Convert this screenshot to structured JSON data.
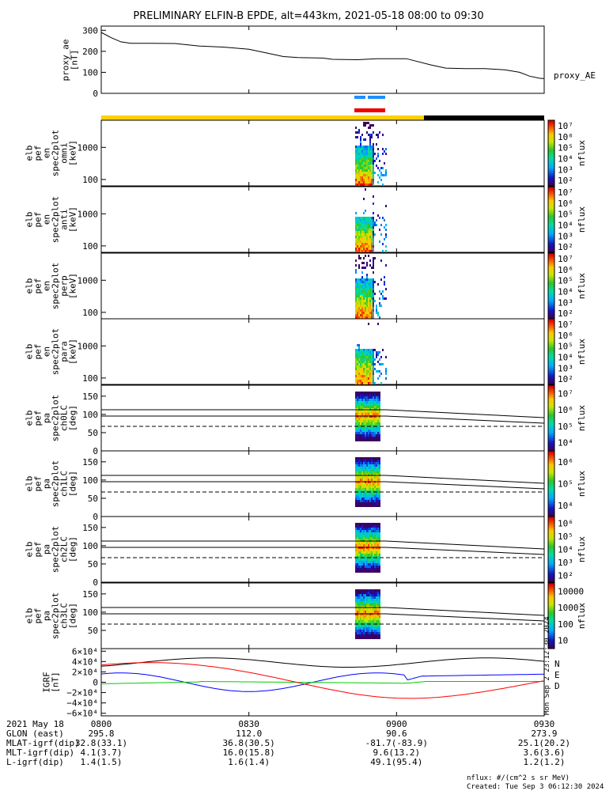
{
  "title": "PRELIMINARY ELFIN-B EPDE, alt=443km, 2021-05-18 08:00 to 09:30",
  "chart_data": {
    "type": "spectrogram",
    "x_range_minutes": [
      0,
      90
    ],
    "x_tick_labels": [
      "0800",
      "0830",
      "0900",
      "0930"
    ],
    "x_tick_minutes": [
      0,
      30,
      60,
      90
    ],
    "top_panel": {
      "ylabel": "proxy_ae [nT]",
      "ylim": [
        0,
        320
      ],
      "yticks": [
        0,
        100,
        200,
        300
      ],
      "series_label": "proxy_AE",
      "points": [
        [
          0,
          290
        ],
        [
          2,
          265
        ],
        [
          4,
          245
        ],
        [
          6,
          238
        ],
        [
          10,
          238
        ],
        [
          15,
          237
        ],
        [
          20,
          225
        ],
        [
          25,
          220
        ],
        [
          30,
          210
        ],
        [
          34,
          190
        ],
        [
          37,
          175
        ],
        [
          40,
          170
        ],
        [
          45,
          168
        ],
        [
          47,
          162
        ],
        [
          52,
          160
        ],
        [
          56,
          165
        ],
        [
          62,
          165
        ],
        [
          67,
          135
        ],
        [
          70,
          120
        ],
        [
          74,
          118
        ],
        [
          78,
          118
        ],
        [
          82,
          112
        ],
        [
          85,
          100
        ],
        [
          87,
          82
        ],
        [
          89,
          72
        ],
        [
          90,
          70
        ]
      ]
    },
    "spectrogram_panels": [
      {
        "ylabel": [
          "elb",
          "pef",
          "en",
          "spec2plot",
          "omni",
          "[keV]"
        ],
        "yticks": [
          "100",
          "1000"
        ],
        "cbar_label": "nflux",
        "cbar_ticks": [
          "10²",
          "10³",
          "10⁴",
          "10⁵",
          "10⁶",
          "10⁷"
        ]
      },
      {
        "ylabel": [
          "elb",
          "pef",
          "en",
          "spec2plot",
          "anti",
          "[keV]"
        ],
        "yticks": [
          "100",
          "1000"
        ],
        "cbar_label": "nflux",
        "cbar_ticks": [
          "10²",
          "10³",
          "10⁴",
          "10⁵",
          "10⁶",
          "10⁷"
        ]
      },
      {
        "ylabel": [
          "elb",
          "pef",
          "en",
          "spec2plot",
          "perp",
          "[keV]"
        ],
        "yticks": [
          "100",
          "1000"
        ],
        "cbar_label": "nflux",
        "cbar_ticks": [
          "10²",
          "10³",
          "10⁴",
          "10⁵",
          "10⁶",
          "10⁷"
        ]
      },
      {
        "ylabel": [
          "elb",
          "pef",
          "en",
          "spec2plot",
          "para",
          "[keV]"
        ],
        "yticks": [
          "100",
          "1000"
        ],
        "cbar_label": "nflux",
        "cbar_ticks": [
          "10²",
          "10³",
          "10⁴",
          "10⁵",
          "10⁶",
          "10⁷"
        ]
      },
      {
        "ylabel": [
          "elb",
          "pef",
          "pa",
          "spec2plot",
          "ch0LC",
          "[deg]"
        ],
        "yticks": [
          "0",
          "50",
          "100",
          "150"
        ],
        "cbar_label": "nflux",
        "cbar_ticks": [
          "10⁴",
          "10⁵",
          "10⁶",
          "10⁷"
        ]
      },
      {
        "ylabel": [
          "elb",
          "pef",
          "pa",
          "spec2plot",
          "ch1LC",
          "[deg]"
        ],
        "yticks": [
          "0",
          "50",
          "100",
          "150"
        ],
        "cbar_label": "nflux",
        "cbar_ticks": [
          "10⁴",
          "10⁵",
          "10⁶"
        ]
      },
      {
        "ylabel": [
          "elb",
          "pef",
          "pa",
          "spec2plot",
          "ch2LC",
          "[deg]"
        ],
        "yticks": [
          "0",
          "50",
          "100",
          "150"
        ],
        "cbar_label": "nflux",
        "cbar_ticks": [
          "10²",
          "10³",
          "10⁴",
          "10⁵",
          "10⁶"
        ]
      },
      {
        "ylabel": [
          "elb",
          "pef",
          "pa",
          "spec2plot",
          "ch3LC",
          "[deg]"
        ],
        "yticks": [
          "50",
          "100",
          "150"
        ],
        "cbar_label": "nflux",
        "cbar_ticks": [
          "10",
          "100",
          "1000",
          "10000"
        ]
      }
    ],
    "igrf_panel": {
      "ylabel": "IGRF [nT]",
      "yticks": [
        "−6×10⁴",
        "−4×10⁴",
        "−2×10⁴",
        "0",
        "2×10⁴",
        "4×10⁴",
        "6×10⁴"
      ],
      "ytick_values": [
        -60000,
        -40000,
        -20000,
        0,
        20000,
        40000,
        60000
      ],
      "series": [
        {
          "name": "N",
          "color": "#0000ff"
        },
        {
          "name": "E",
          "color": "#00cc00"
        },
        {
          "name": "D",
          "color": "#ff0000"
        }
      ]
    },
    "orbit_table": {
      "date": "2021 May 18",
      "rows": [
        {
          "label": "GLON (east)",
          "values": [
            "295.8",
            "112.0",
            "90.6",
            "273.9"
          ]
        },
        {
          "label": "MLAT-igrf(dip)",
          "values": [
            "32.8(33.1)",
            "36.8(30.5)",
            "-81.7(-83.9)",
            "25.1(20.2)"
          ]
        },
        {
          "label": "MLT-igrf(dip)",
          "values": [
            "4.1(3.7)",
            "16.0(15.8)",
            "9.6(13.2)",
            "3.6(3.6)"
          ]
        },
        {
          "label": "L-igrf(dip)",
          "values": [
            "1.4(1.5)",
            "1.6(1.4)",
            "49.1(95.4)",
            "1.2(1.2)"
          ]
        }
      ]
    }
  },
  "footer": {
    "units": "nflux: #/(cm^2 s sr MeV)",
    "created": "Created: Tue Sep  3 06:12:30 2024",
    "side_stamp": "Mon Sep  2 23:12:30 2024"
  }
}
